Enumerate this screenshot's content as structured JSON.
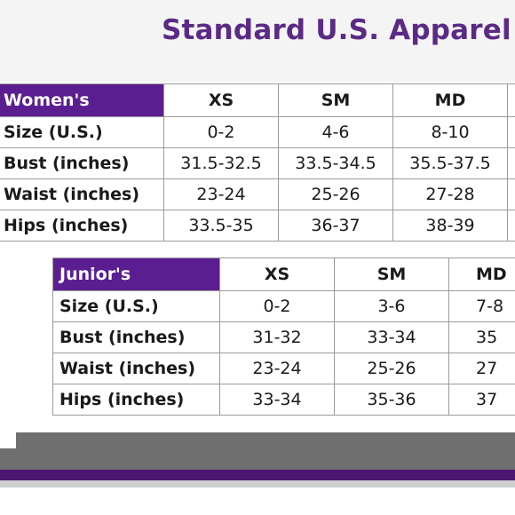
{
  "title": "Standard U.S. Apparel S",
  "womens": {
    "header_label": "Women's",
    "sizes": [
      "XS",
      "SM",
      "MD",
      ""
    ],
    "rows": [
      {
        "label": "Size (U.S.)",
        "values": [
          "0-2",
          "4-6",
          "8-10",
          ""
        ]
      },
      {
        "label": "Bust (inches)",
        "values": [
          "31.5-32.5",
          "33.5-34.5",
          "35.5-37.5",
          ""
        ]
      },
      {
        "label": "Waist (inches)",
        "values": [
          "23-24",
          "25-26",
          "27-28",
          ""
        ]
      },
      {
        "label": "Hips (inches)",
        "values": [
          "33.5-35",
          "36-37",
          "38-39",
          ""
        ]
      }
    ]
  },
  "juniors": {
    "header_label": "Junior's",
    "sizes": [
      "XS",
      "SM",
      "MD"
    ],
    "rows": [
      {
        "label": "Size (U.S.)",
        "values": [
          "0-2",
          "3-6",
          "7-8"
        ]
      },
      {
        "label": "Bust (inches)",
        "values": [
          "31-32",
          "33-34",
          "35"
        ]
      },
      {
        "label": "Waist (inches)",
        "values": [
          "23-24",
          "25-26",
          "27"
        ]
      },
      {
        "label": "Hips (inches)",
        "values": [
          "33-34",
          "35-36",
          "37"
        ]
      }
    ]
  },
  "colors": {
    "title": "#5b2a86",
    "header_fill": "#5b1e91",
    "border": "#9a9a9a",
    "footer_gray": "#6f6f6f",
    "footer_purple": "#4b1670"
  }
}
